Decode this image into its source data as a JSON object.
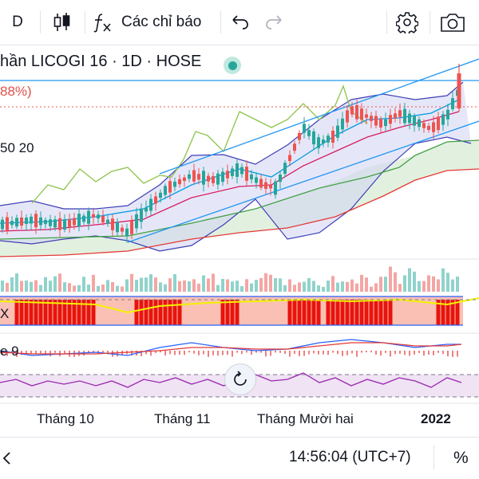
{
  "toolbar": {
    "interval": "D",
    "indicators_label": "Các chỉ báo"
  },
  "legend": {
    "title": "hần LICOGI 16 · 1D · HOSE",
    "change_pct": "88%)"
  },
  "indicator_labels": {
    "ichimoku": "50 20",
    "dmi": "X",
    "macd": "e 9"
  },
  "x_axis": {
    "labels": [
      "Tháng 10",
      "Tháng 11",
      "Tháng Mười hai",
      "2022"
    ]
  },
  "status_bar": {
    "time": "14:56:04 (UTC+7)",
    "percent_toggle": "%"
  },
  "colors": {
    "up": "#26a69a",
    "down": "#ef5350",
    "accent": "#2962ff",
    "channel": "#2196f3"
  },
  "icons": {
    "candles": "candlestick-icon",
    "indicators": "fx-icon",
    "undo": "undo-icon",
    "redo": "redo-icon",
    "settings": "gear-icon",
    "snapshot": "camera-icon",
    "reset": "reset-icon",
    "status": "market-status-icon"
  }
}
